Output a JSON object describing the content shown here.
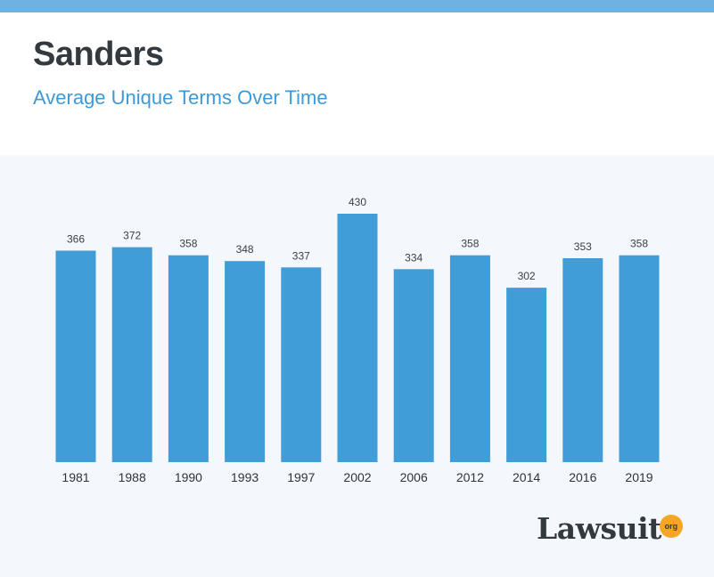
{
  "header": {
    "title": "Sanders",
    "subtitle": "Average Unique Terms Over Time"
  },
  "logo": {
    "word": "Lawsuit",
    "badge": "org"
  },
  "colors": {
    "bar": "#409dd7",
    "top_bar": "#6fb1e0",
    "subtitle": "#3d9ad6",
    "title": "#333a3f",
    "chart_bg": "#f4f7fb",
    "logo_badge": "#f5a623"
  },
  "chart_data": {
    "type": "bar",
    "title": "",
    "xlabel": "",
    "ylabel": "",
    "categories": [
      "1981",
      "1988",
      "1990",
      "1993",
      "1997",
      "2002",
      "2006",
      "2012",
      "2014",
      "2016",
      "2019"
    ],
    "values": [
      366,
      372,
      358,
      348,
      337,
      430,
      334,
      358,
      302,
      353,
      358
    ],
    "ylim": [
      0,
      430
    ],
    "grid": false,
    "legend": "none",
    "data_labels": true
  }
}
